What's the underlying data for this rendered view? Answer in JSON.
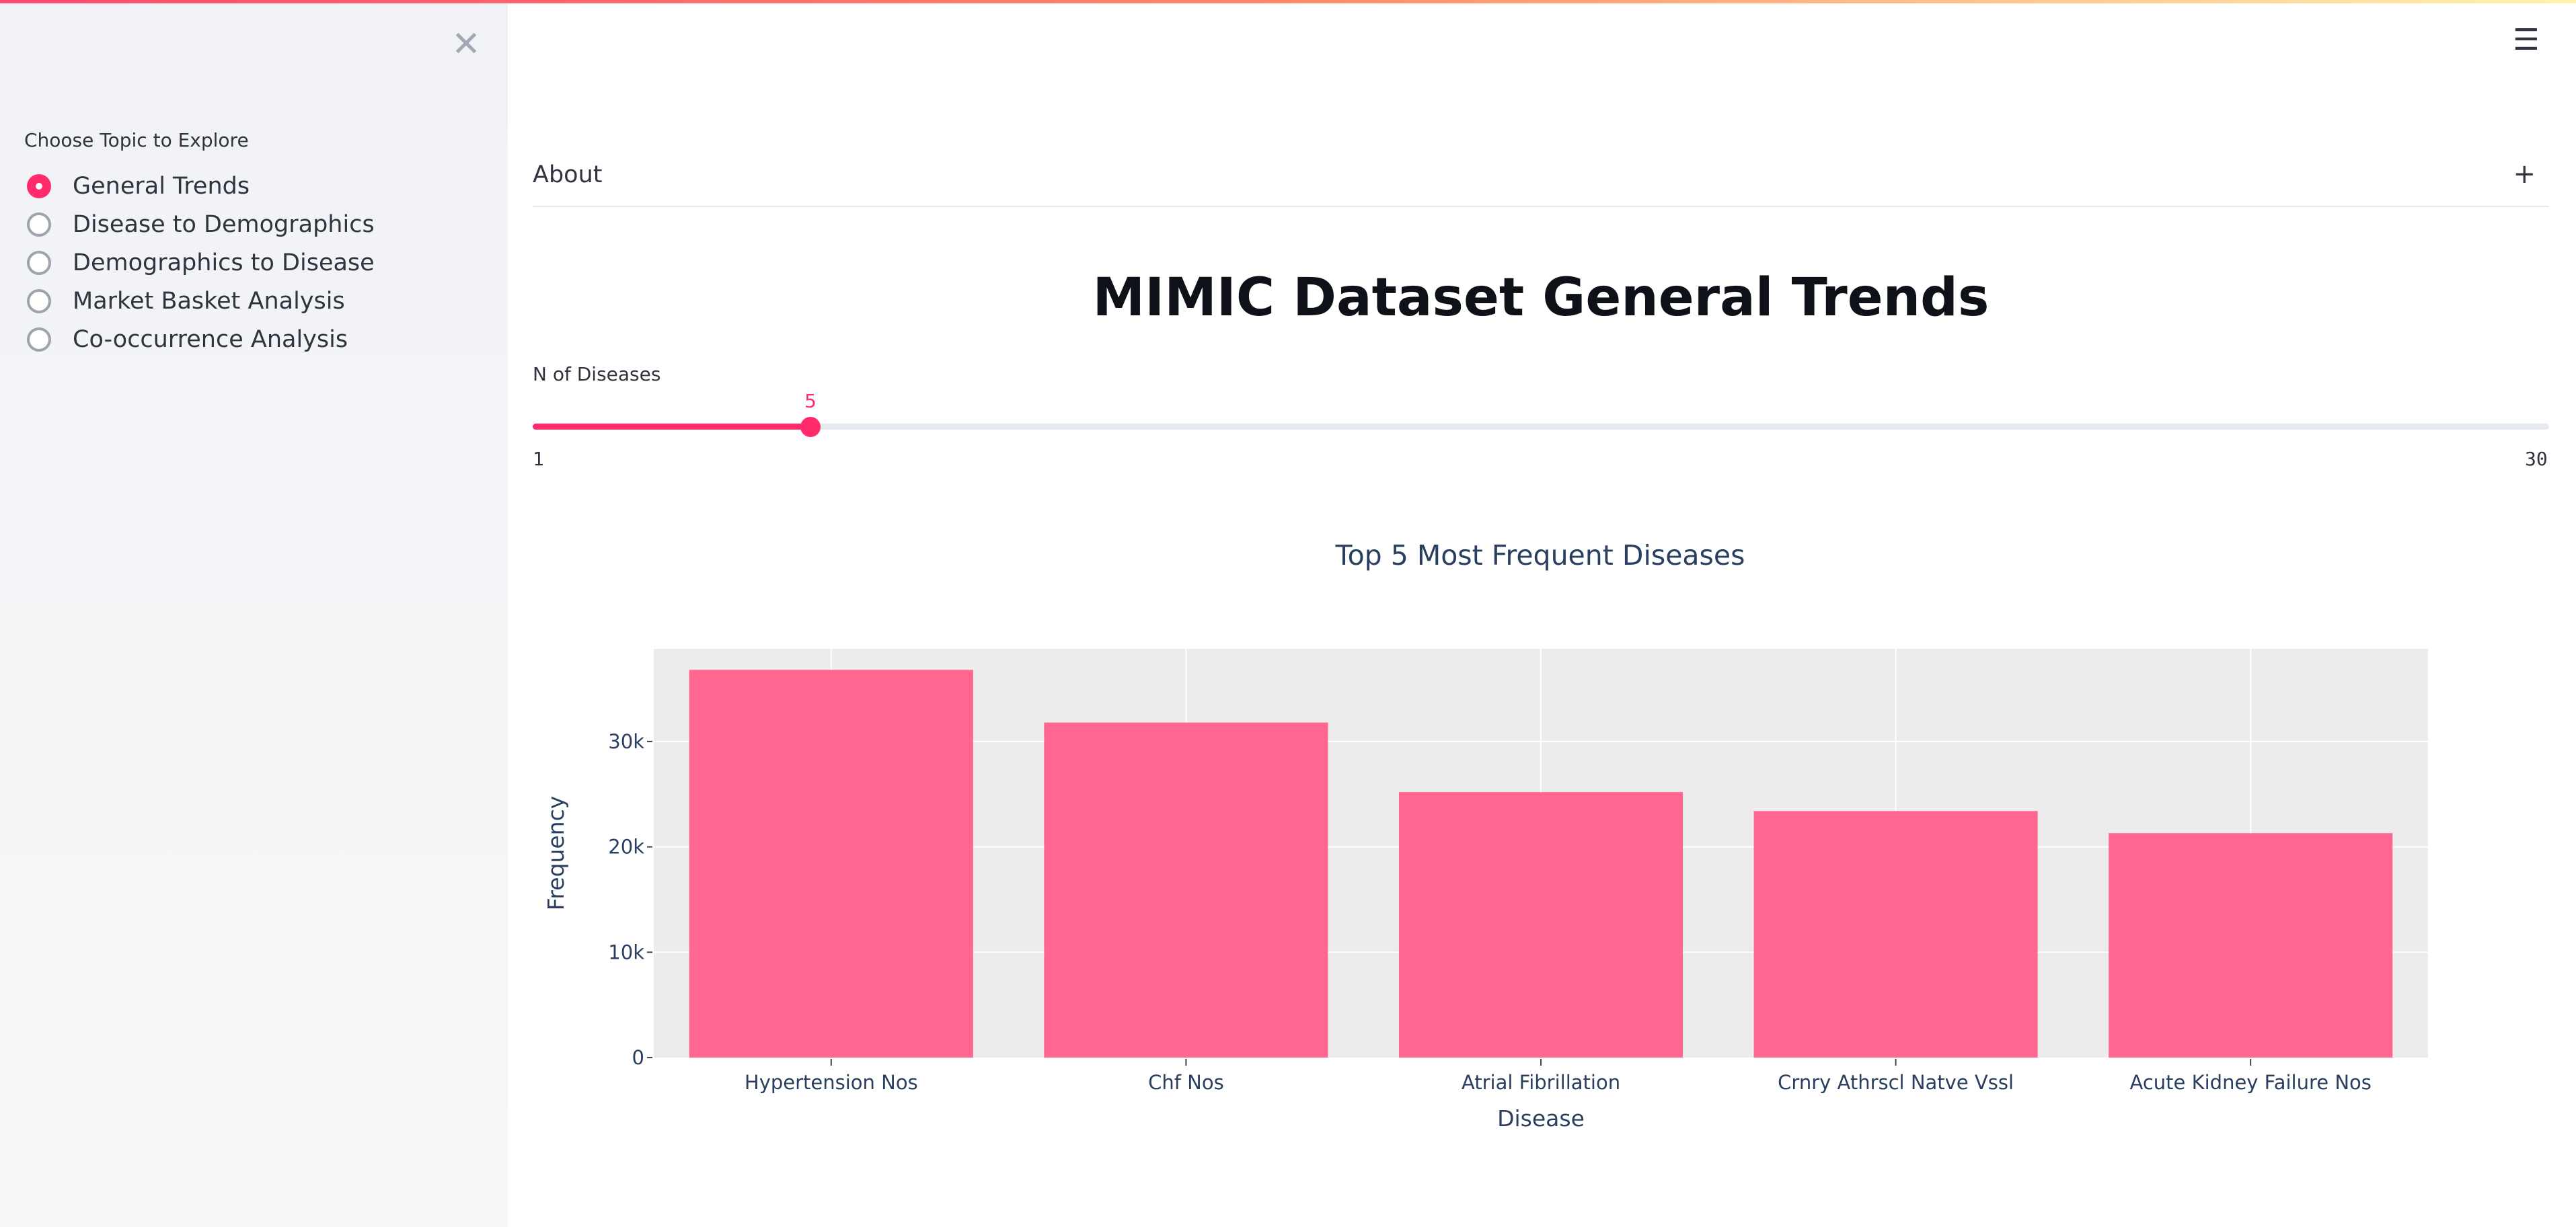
{
  "sidebar": {
    "close_glyph": "✕",
    "topic_label": "Choose Topic to Explore",
    "topics": [
      {
        "label": "General Trends",
        "selected": true
      },
      {
        "label": "Disease to Demographics",
        "selected": false
      },
      {
        "label": "Demographics to Disease",
        "selected": false
      },
      {
        "label": "Market Basket Analysis",
        "selected": false
      },
      {
        "label": "Co-occurrence Analysis",
        "selected": false
      }
    ]
  },
  "header": {
    "menu_glyph": "☰"
  },
  "about": {
    "label": "About",
    "expand_glyph": "+"
  },
  "main": {
    "title": "MIMIC Dataset General Trends"
  },
  "slider": {
    "label": "N of Diseases",
    "value": "5",
    "min": "1",
    "max": "30"
  },
  "colors": {
    "accent": "#ff2b6b",
    "bar": "#ff6790",
    "plot_background": "#ececec"
  },
  "icons": {
    "sidebar_close": "close-icon",
    "menu": "hamburger-menu-icon",
    "about_expand": "plus-icon"
  },
  "chart_data": {
    "type": "bar",
    "title": "Top 5 Most Frequent Diseases",
    "xlabel": "Disease",
    "ylabel": "Frequency",
    "categories": [
      "Hypertension Nos",
      "Chf Nos",
      "Atrial Fibrillation",
      "Crnry Athrscl Natve Vssl",
      "Acute Kidney Failure Nos"
    ],
    "values": [
      36800,
      31800,
      25200,
      23400,
      21300
    ],
    "ylim": [
      0,
      38800
    ],
    "yticks": [
      0,
      10000,
      20000,
      30000
    ],
    "ytick_labels": [
      "0",
      "10k",
      "20k",
      "30k"
    ],
    "grid": true
  }
}
